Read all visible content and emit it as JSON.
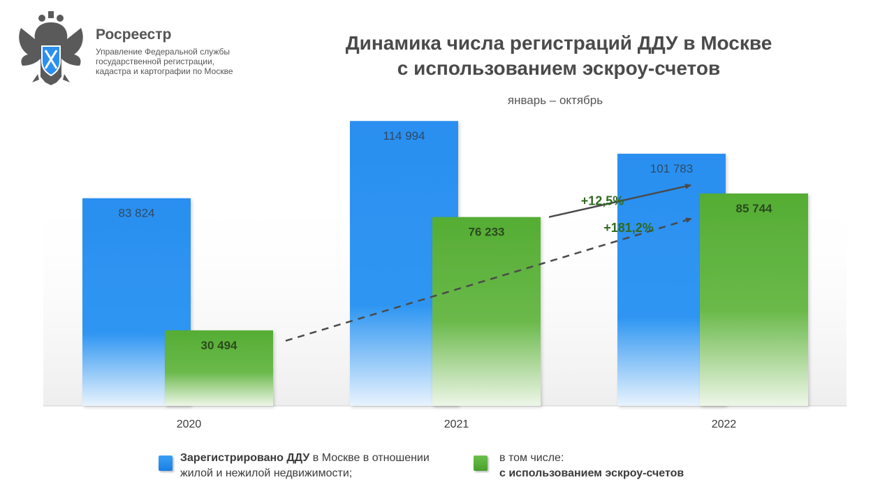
{
  "header": {
    "org_name": "Росреестр",
    "org_sub": [
      "Управление Федеральной службы",
      "государственной регистрации,",
      "кадастра и картографии по Москве"
    ],
    "title_lines": [
      "Динамика числа регистраций ДДУ в Москве",
      "с использованием эскроу-счетов"
    ],
    "subtitle": "январь – октябрь",
    "logo_icon": "double-headed-eagle-emblem-icon"
  },
  "chart_data": {
    "type": "bar",
    "title": "Динамика числа регистраций ДДУ в Москве с использованием эскроу-счетов",
    "subtitle": "январь – октябрь",
    "categories": [
      "2020",
      "2021",
      "2022"
    ],
    "series": [
      {
        "name": "Зарегистрировано ДДУ в Москве в отношении жилой и нежилой недвижимости;",
        "values": [
          83824,
          114994,
          101783
        ],
        "labels": [
          "83 824",
          "114 994",
          "101 783"
        ],
        "color": "#2b8ff0"
      },
      {
        "name": "в том числе: с использованием эскроу-счетов",
        "values": [
          30494,
          76233,
          85744
        ],
        "labels": [
          "30 494",
          "76 233",
          "85 744"
        ],
        "color": "#5bb33a"
      }
    ],
    "annotations": [
      {
        "text": "+12,5%",
        "from": [
          "2021",
          76233
        ],
        "to": [
          "2022",
          101783
        ],
        "style": "solid"
      },
      {
        "text": "+181,2%",
        "from": [
          "2020",
          30494
        ],
        "to": [
          "2022",
          85744
        ],
        "style": "dashed"
      }
    ],
    "ylim": [
      0,
      130000
    ],
    "grid": false,
    "legend_placement": "bottom"
  },
  "legend": {
    "blue": {
      "bold": "Зарегистрировано ДДУ",
      "line1_rest": " в Москве в отношении",
      "line2": "жилой и нежилой недвижимости;"
    },
    "green": {
      "line1": "в том числе:",
      "line2_bold": "с использованием эскроу-счетов"
    }
  },
  "colors": {
    "annotation_text": "#2e6a1e",
    "arrow": "#4a4a4a",
    "label_blue": "#2d4a66",
    "label_green": "#2a4a1c"
  }
}
